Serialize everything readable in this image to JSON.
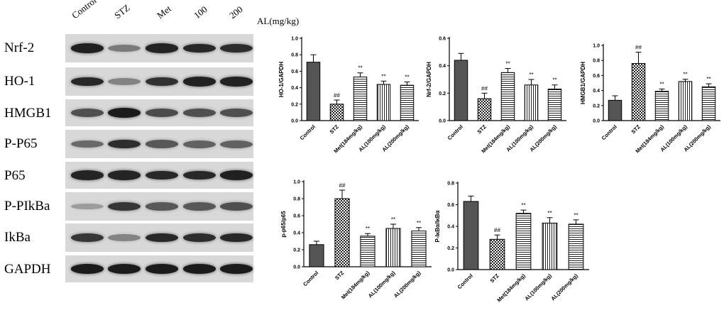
{
  "blot": {
    "lanes": [
      "Control",
      "STZ",
      "Met",
      "100",
      "200"
    ],
    "unit": "AL(mg/kg)",
    "rows": [
      {
        "label": "Nrf-2",
        "intensity": [
          0.88,
          0.35,
          0.85,
          0.82,
          0.8
        ]
      },
      {
        "label": "HO-1",
        "intensity": [
          0.82,
          0.3,
          0.78,
          0.86,
          0.86
        ]
      },
      {
        "label": "HMGB1",
        "intensity": [
          0.6,
          0.9,
          0.62,
          0.6,
          0.6
        ]
      },
      {
        "label": "P-P65",
        "intensity": [
          0.45,
          0.8,
          0.55,
          0.5,
          0.5
        ]
      },
      {
        "label": "P65",
        "intensity": [
          0.85,
          0.85,
          0.82,
          0.82,
          0.88
        ]
      },
      {
        "label": "P-PIkBa",
        "intensity": [
          0.15,
          0.75,
          0.55,
          0.55,
          0.6
        ]
      },
      {
        "label": "IkBa",
        "intensity": [
          0.75,
          0.3,
          0.82,
          0.8,
          0.82
        ]
      },
      {
        "label": "GAPDH",
        "intensity": [
          0.9,
          0.9,
          0.9,
          0.9,
          0.9
        ]
      }
    ]
  },
  "chart_data": [
    {
      "type": "bar",
      "ylabel": "HO-1/GAPDH",
      "categories": [
        "Control",
        "STZ",
        "Met(184mg/kg)",
        "AL(100mg/kg)",
        "AL(200mg/kg)"
      ],
      "values": [
        0.71,
        0.2,
        0.53,
        0.44,
        0.43
      ],
      "errors": [
        0.09,
        0.05,
        0.05,
        0.04,
        0.04
      ],
      "significance": [
        "",
        "##",
        "**",
        "**",
        "**"
      ],
      "patterns": [
        "dark",
        "check",
        "hline",
        "vline",
        "hline"
      ],
      "ylim": [
        0,
        1.0
      ],
      "yticks": [
        "0.0",
        "0.2",
        "0.4",
        "0.6",
        "0.8",
        "1.0"
      ]
    },
    {
      "type": "bar",
      "ylabel": "Nrf-2/GAPDH",
      "categories": [
        "Control",
        "STZ",
        "Met(184mg/kg)",
        "AL(100mg/kg)",
        "AL(200mg/kg)"
      ],
      "values": [
        0.44,
        0.16,
        0.35,
        0.26,
        0.23
      ],
      "errors": [
        0.05,
        0.04,
        0.03,
        0.04,
        0.03
      ],
      "significance": [
        "",
        "##",
        "**",
        "**",
        "**"
      ],
      "patterns": [
        "dark",
        "check",
        "hline",
        "vline",
        "hline"
      ],
      "ylim": [
        0,
        0.6
      ],
      "yticks": [
        "0.0",
        "0.2",
        "0.4",
        "0.6"
      ]
    },
    {
      "type": "bar",
      "ylabel": "HMGB1/GAPDH",
      "categories": [
        "Control",
        "STZ",
        "Met(184mg/kg)",
        "AL(100mg/kg)",
        "AL(200mg/kg)"
      ],
      "values": [
        0.27,
        0.76,
        0.39,
        0.52,
        0.45
      ],
      "errors": [
        0.06,
        0.15,
        0.03,
        0.03,
        0.04
      ],
      "significance": [
        "",
        "##",
        "**",
        "**",
        "**"
      ],
      "patterns": [
        "dark",
        "check",
        "hline",
        "vline",
        "hline"
      ],
      "ylim": [
        0,
        1.0
      ],
      "yticks": [
        "0.0",
        "0.2",
        "0.4",
        "0.6",
        "0.8",
        "1.0"
      ]
    },
    {
      "type": "bar",
      "ylabel": "p-p65/p65",
      "categories": [
        "Control",
        "STZ",
        "Met(184mg/kg)",
        "AL(100mg/kg)",
        "AL(200mg/kg)"
      ],
      "values": [
        0.26,
        0.8,
        0.36,
        0.45,
        0.42
      ],
      "errors": [
        0.04,
        0.1,
        0.03,
        0.05,
        0.04
      ],
      "significance": [
        "",
        "##",
        "**",
        "**",
        "**"
      ],
      "patterns": [
        "dark",
        "check",
        "hline",
        "vline",
        "hline"
      ],
      "ylim": [
        0,
        1.0
      ],
      "yticks": [
        "0.0",
        "0.2",
        "0.4",
        "0.6",
        "0.8",
        "1.0"
      ]
    },
    {
      "type": "bar",
      "ylabel": "P-IκBα/IκBα",
      "categories": [
        "Control",
        "STZ",
        "Met(184mg/kg)",
        "AL(100mg/kg)",
        "AL(200mg/kg)"
      ],
      "values": [
        0.63,
        0.28,
        0.52,
        0.43,
        0.42
      ],
      "errors": [
        0.05,
        0.04,
        0.03,
        0.05,
        0.04
      ],
      "significance": [
        "",
        "##",
        "**",
        "**",
        "**"
      ],
      "patterns": [
        "dark",
        "check",
        "hline",
        "vline",
        "hline"
      ],
      "ylim": [
        0,
        0.8
      ],
      "yticks": [
        "0.0",
        "0.2",
        "0.4",
        "0.6",
        "0.8"
      ]
    }
  ]
}
